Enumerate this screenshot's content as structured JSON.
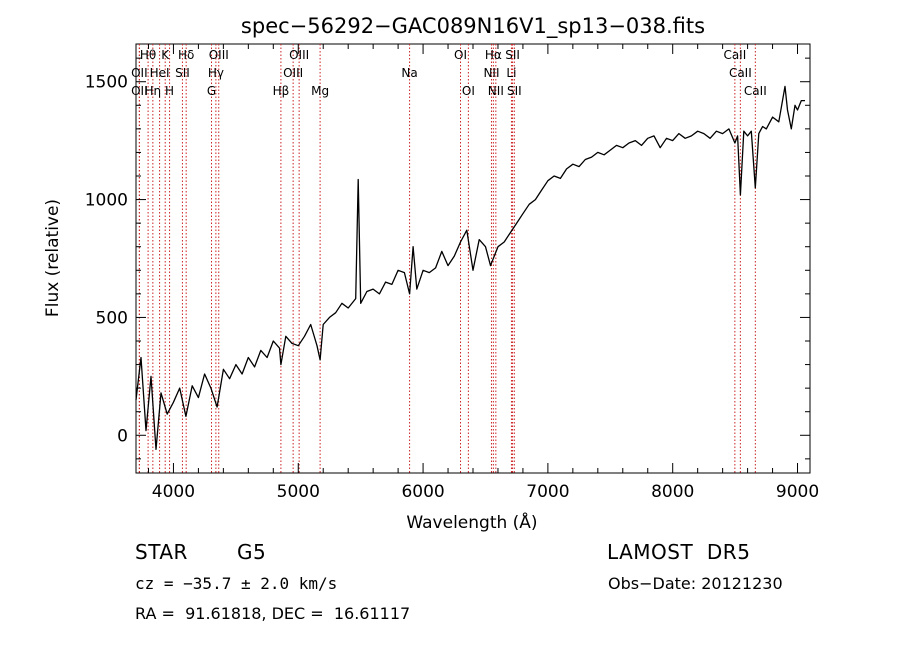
{
  "chart_data": {
    "type": "line",
    "title": "spec−56292−GAC089N16V1_sp13−038.fits",
    "xlabel": "Wavelength (Å)",
    "ylabel": "Flux (relative)",
    "xlim": [
      3700,
      9100
    ],
    "ylim": [
      -160,
      1660
    ],
    "xticks": [
      4000,
      5000,
      6000,
      7000,
      8000,
      9000
    ],
    "yticks": [
      0,
      500,
      1000,
      1500
    ],
    "line_color": "#000000",
    "marker_color": "#cc2222",
    "series": [
      {
        "x": [
          3700,
          3740,
          3780,
          3820,
          3860,
          3900,
          3950,
          4000,
          4050,
          4100,
          4150,
          4200,
          4250,
          4300,
          4350,
          4400,
          4450,
          4500,
          4550,
          4600,
          4650,
          4700,
          4750,
          4800,
          4850,
          4861,
          4900,
          4950,
          5000,
          5050,
          5100,
          5150,
          5175,
          5200,
          5250,
          5300,
          5350,
          5400,
          5460,
          5480,
          5500,
          5550,
          5600,
          5650,
          5700,
          5750,
          5800,
          5850,
          5892,
          5920,
          5950,
          6000,
          6050,
          6100,
          6150,
          6200,
          6250,
          6300,
          6350,
          6400,
          6450,
          6500,
          6540,
          6563,
          6600,
          6650,
          6700,
          6750,
          6800,
          6850,
          6900,
          6950,
          7000,
          7050,
          7100,
          7150,
          7200,
          7250,
          7300,
          7350,
          7400,
          7450,
          7500,
          7550,
          7600,
          7650,
          7700,
          7750,
          7800,
          7850,
          7900,
          7950,
          8000,
          8050,
          8100,
          8150,
          8200,
          8250,
          8300,
          8350,
          8400,
          8450,
          8498,
          8520,
          8542,
          8570,
          8600,
          8630,
          8662,
          8690,
          8720,
          8750,
          8800,
          8850,
          8900,
          8920,
          8950,
          8980,
          9000,
          9030,
          9060
        ],
        "y": [
          150,
          330,
          20,
          250,
          -60,
          180,
          90,
          140,
          200,
          80,
          210,
          160,
          260,
          200,
          120,
          280,
          240,
          300,
          260,
          330,
          290,
          360,
          330,
          400,
          370,
          300,
          420,
          390,
          380,
          420,
          470,
          380,
          320,
          470,
          500,
          520,
          560,
          540,
          580,
          1085,
          560,
          610,
          620,
          600,
          650,
          640,
          700,
          690,
          600,
          800,
          620,
          700,
          690,
          710,
          780,
          720,
          760,
          820,
          870,
          700,
          830,
          800,
          720,
          750,
          800,
          820,
          860,
          900,
          940,
          980,
          1000,
          1040,
          1080,
          1100,
          1090,
          1130,
          1150,
          1140,
          1170,
          1180,
          1200,
          1190,
          1210,
          1230,
          1220,
          1240,
          1250,
          1230,
          1260,
          1270,
          1220,
          1260,
          1250,
          1280,
          1260,
          1270,
          1290,
          1280,
          1260,
          1290,
          1280,
          1300,
          1240,
          1270,
          1020,
          1290,
          1270,
          1290,
          1050,
          1280,
          1310,
          1300,
          1350,
          1330,
          1480,
          1380,
          1300,
          1400,
          1380,
          1420,
          1420
        ]
      }
    ],
    "lines": [
      {
        "label": "Hθ",
        "wavelength": 3797,
        "row": 0
      },
      {
        "label": "K",
        "wavelength": 3934,
        "row": 0
      },
      {
        "label": "Hδ",
        "wavelength": 4102,
        "row": 0
      },
      {
        "label": "OIII",
        "wavelength": 4363,
        "row": 0
      },
      {
        "label": "OIII",
        "wavelength": 5007,
        "row": 0
      },
      {
        "label": "OI",
        "wavelength": 6300,
        "row": 0
      },
      {
        "label": "Hα",
        "wavelength": 6563,
        "row": 0
      },
      {
        "label": "SII",
        "wavelength": 6717,
        "row": 0
      },
      {
        "label": "CaII",
        "wavelength": 8498,
        "row": 0
      },
      {
        "label": "OII",
        "wavelength": 3727,
        "row": 1
      },
      {
        "label": "HeI",
        "wavelength": 3889,
        "row": 1
      },
      {
        "label": "SII",
        "wavelength": 4072,
        "row": 1
      },
      {
        "label": "Hγ",
        "wavelength": 4340,
        "row": 1
      },
      {
        "label": "OIII",
        "wavelength": 4959,
        "row": 1
      },
      {
        "label": "Na",
        "wavelength": 5892,
        "row": 1
      },
      {
        "label": "NII",
        "wavelength": 6548,
        "row": 1
      },
      {
        "label": "Li",
        "wavelength": 6708,
        "row": 1
      },
      {
        "label": "CaII",
        "wavelength": 8542,
        "row": 1
      },
      {
        "label": "OII",
        "wavelength": 3727,
        "row": 2
      },
      {
        "label": "Hη",
        "wavelength": 3835,
        "row": 2
      },
      {
        "label": "H",
        "wavelength": 3969,
        "row": 2
      },
      {
        "label": "G",
        "wavelength": 4305,
        "row": 2
      },
      {
        "label": "Hβ",
        "wavelength": 4861,
        "row": 2
      },
      {
        "label": "Mg",
        "wavelength": 5175,
        "row": 2
      },
      {
        "label": "OI",
        "wavelength": 6363,
        "row": 2
      },
      {
        "label": "NII",
        "wavelength": 6583,
        "row": 2
      },
      {
        "label": "SII",
        "wavelength": 6731,
        "row": 2
      },
      {
        "label": "CaII",
        "wavelength": 8662,
        "row": 2
      }
    ]
  },
  "info": {
    "class": "STAR",
    "subclass": "G5",
    "survey": "LAMOST  DR5",
    "cz": "cz = −35.7 ± 2.0 km/s",
    "obs_date": "Obs−Date: 20121230",
    "coords": "RA =  91.61818, DEC =  16.61117"
  }
}
